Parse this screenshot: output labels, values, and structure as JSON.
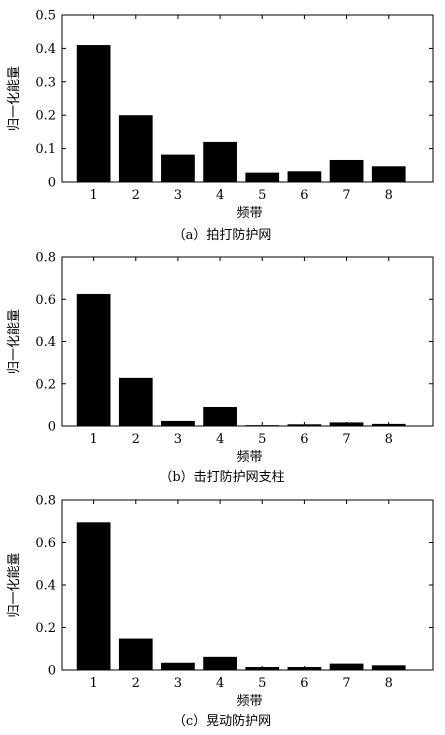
{
  "chart_data": [
    {
      "type": "bar",
      "categories": [
        "1",
        "2",
        "3",
        "4",
        "5",
        "6",
        "7",
        "8"
      ],
      "values": [
        0.41,
        0.2,
        0.082,
        0.12,
        0.028,
        0.032,
        0.066,
        0.047
      ],
      "xlabel": "频带",
      "ylabel": "归一化能量",
      "ylim": [
        0,
        0.5
      ],
      "yticks": [
        "0",
        "0.1",
        "0.2",
        "0.3",
        "0.4",
        "0.5"
      ],
      "caption": "（a）拍打防护网",
      "bar_color": "#000000",
      "grid": false
    },
    {
      "type": "bar",
      "categories": [
        "1",
        "2",
        "3",
        "4",
        "5",
        "6",
        "7",
        "8"
      ],
      "values": [
        0.625,
        0.228,
        0.024,
        0.09,
        0.004,
        0.008,
        0.017,
        0.01
      ],
      "xlabel": "频带",
      "ylabel": "归一化能量",
      "ylim": [
        0,
        0.8
      ],
      "yticks": [
        "0",
        "0.2",
        "0.4",
        "0.6",
        "0.8"
      ],
      "caption": "（b）击打防护网支柱",
      "bar_color": "#000000",
      "grid": false
    },
    {
      "type": "bar",
      "categories": [
        "1",
        "2",
        "3",
        "4",
        "5",
        "6",
        "7",
        "8"
      ],
      "values": [
        0.695,
        0.148,
        0.034,
        0.062,
        0.014,
        0.014,
        0.03,
        0.022
      ],
      "xlabel": "频带",
      "ylabel": "归一化能量",
      "ylim": [
        0,
        0.8
      ],
      "yticks": [
        "0",
        "0.2",
        "0.4",
        "0.6",
        "0.8"
      ],
      "caption": "（c）晃动防护网",
      "bar_color": "#000000",
      "grid": false
    }
  ]
}
